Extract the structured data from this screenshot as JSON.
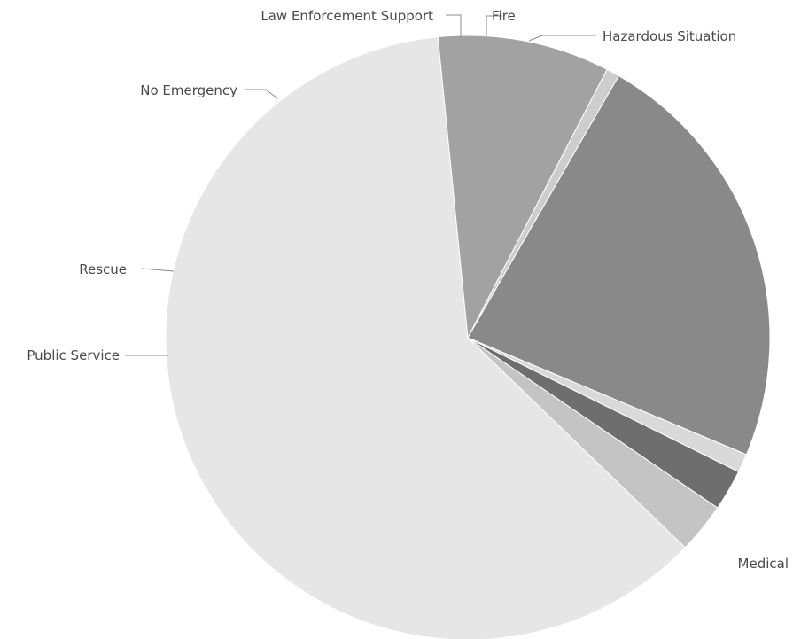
{
  "chart_data": {
    "type": "pie",
    "title": "",
    "legend": "none",
    "slices": [
      {
        "label": "Medical",
        "value": 61.2,
        "color": "#e6e6e6"
      },
      {
        "label": "Public Service",
        "value": 9.2,
        "color": "#a2a2a2"
      },
      {
        "label": "Rescue",
        "value": 0.7,
        "color": "#cdcdcd"
      },
      {
        "label": "No Emergency",
        "value": 23.0,
        "color": "#898989"
      },
      {
        "label": "Law Enforcement Support",
        "value": 1.0,
        "color": "#d9d9d9"
      },
      {
        "label": "Fire",
        "value": 2.2,
        "color": "#6e6e6e"
      },
      {
        "label": "Hazardous Situation",
        "value": 2.7,
        "color": "#c4c4c4"
      }
    ]
  }
}
